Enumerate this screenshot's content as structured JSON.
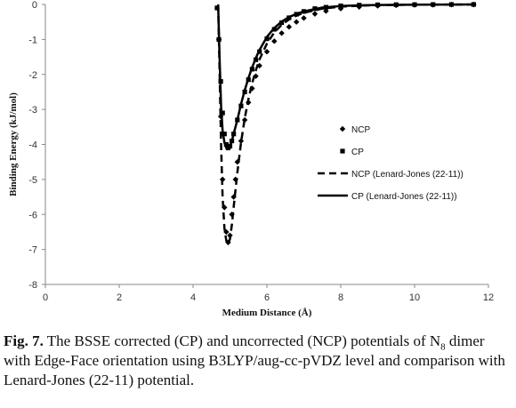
{
  "chart_data": {
    "type": "scatter",
    "xlabel": "Medium  Distance (Å)",
    "ylabel": "Binding Energy (kJ/mol)",
    "xlim": [
      0,
      12
    ],
    "ylim": [
      -8,
      0
    ],
    "xticks": [
      0,
      2,
      4,
      6,
      8,
      10,
      12
    ],
    "yticks": [
      0,
      -1,
      -2,
      -3,
      -4,
      -5,
      -6,
      -7,
      -8
    ],
    "grid": false,
    "legend_position": "right",
    "series": [
      {
        "name": "NCP",
        "kind": "markers",
        "marker": "diamond",
        "color": "#000000",
        "x": [
          4.7,
          4.75,
          4.8,
          4.85,
          4.9,
          4.95,
          5.0,
          5.05,
          5.1,
          5.15,
          5.2,
          5.3,
          5.4,
          5.5,
          5.6,
          5.7,
          5.8,
          6.0,
          6.2,
          6.4,
          6.6,
          6.8,
          7.0,
          7.3,
          7.6,
          8.0,
          8.5,
          9.0,
          9.5,
          10.0,
          10.5,
          11.0,
          11.6
        ],
        "y": [
          -1.0,
          -3.2,
          -5.0,
          -5.8,
          -6.5,
          -6.8,
          -6.6,
          -6.0,
          -5.5,
          -5.0,
          -4.5,
          -3.9,
          -3.3,
          -2.8,
          -2.4,
          -2.05,
          -1.75,
          -1.35,
          -1.05,
          -0.82,
          -0.64,
          -0.5,
          -0.39,
          -0.27,
          -0.19,
          -0.12,
          -0.07,
          -0.04,
          -0.025,
          -0.015,
          -0.01,
          -0.006,
          -0.003
        ]
      },
      {
        "name": "CP",
        "kind": "markers",
        "marker": "square",
        "color": "#000000",
        "x": [
          4.65,
          4.7,
          4.75,
          4.8,
          4.85,
          4.9,
          4.95,
          5.0,
          5.05,
          5.1,
          5.2,
          5.3,
          5.4,
          5.5,
          5.6,
          5.7,
          5.8,
          6.0,
          6.2,
          6.4,
          6.6,
          6.8,
          7.0,
          7.3,
          7.6,
          8.0,
          8.5,
          9.0,
          9.5,
          10.0,
          10.5,
          11.0,
          11.6
        ],
        "y": [
          -0.1,
          -1.0,
          -2.2,
          -3.1,
          -3.7,
          -4.0,
          -4.1,
          -4.05,
          -3.9,
          -3.7,
          -3.3,
          -2.9,
          -2.5,
          -2.15,
          -1.85,
          -1.58,
          -1.35,
          -0.98,
          -0.71,
          -0.52,
          -0.38,
          -0.28,
          -0.2,
          -0.12,
          -0.08,
          -0.04,
          -0.02,
          -0.01,
          -0.006,
          -0.004,
          -0.002,
          -0.001,
          0
        ]
      },
      {
        "name": "NCP (Lenard-Jones (22-11))",
        "kind": "line",
        "dash": "dashed",
        "color": "#000000",
        "x": [
          4.68,
          4.72,
          4.76,
          4.8,
          4.85,
          4.9,
          4.95,
          5.0,
          5.05,
          5.1,
          5.15,
          5.2,
          5.3,
          5.4,
          5.5,
          5.6,
          5.7,
          5.8,
          6.0,
          6.2,
          6.4,
          6.6,
          6.8,
          7.0,
          7.5,
          8.0,
          8.5,
          9.0,
          10.0,
          11.0,
          11.6
        ],
        "y": [
          0,
          -2.0,
          -4.0,
          -5.5,
          -6.4,
          -6.75,
          -6.85,
          -6.7,
          -6.3,
          -5.8,
          -5.3,
          -4.8,
          -3.95,
          -3.25,
          -2.7,
          -2.25,
          -1.88,
          -1.57,
          -1.12,
          -0.8,
          -0.58,
          -0.43,
          -0.32,
          -0.24,
          -0.12,
          -0.06,
          -0.035,
          -0.02,
          -0.008,
          -0.003,
          -0.002
        ]
      },
      {
        "name": "CP (Lenard-Jones (22-11))",
        "kind": "line",
        "dash": "solid",
        "color": "#000000",
        "x": [
          4.68,
          4.72,
          4.76,
          4.8,
          4.85,
          4.9,
          4.95,
          5.0,
          5.05,
          5.1,
          5.2,
          5.3,
          5.4,
          5.5,
          5.6,
          5.7,
          5.8,
          6.0,
          6.2,
          6.4,
          6.6,
          6.8,
          7.0,
          7.5,
          8.0,
          8.5,
          9.0,
          10.0,
          11.0,
          11.6
        ],
        "y": [
          0,
          -1.6,
          -2.9,
          -3.6,
          -3.95,
          -4.1,
          -4.12,
          -4.05,
          -3.9,
          -3.7,
          -3.3,
          -2.85,
          -2.45,
          -2.1,
          -1.8,
          -1.53,
          -1.3,
          -0.93,
          -0.67,
          -0.49,
          -0.36,
          -0.27,
          -0.2,
          -0.09,
          -0.045,
          -0.025,
          -0.014,
          -0.005,
          -0.002,
          -0.001
        ]
      }
    ]
  },
  "caption": {
    "fig_label": "Fig. 7.",
    "text_before_sub": " The BSSE corrected (CP) and uncorrected (NCP) potentials of N",
    "subscript": "8",
    "text_after_sub": " dimer with Edge-Face orientation using B3LYP/aug-cc-pVDZ level and comparison with Lenard-Jones (22-11) potential."
  }
}
